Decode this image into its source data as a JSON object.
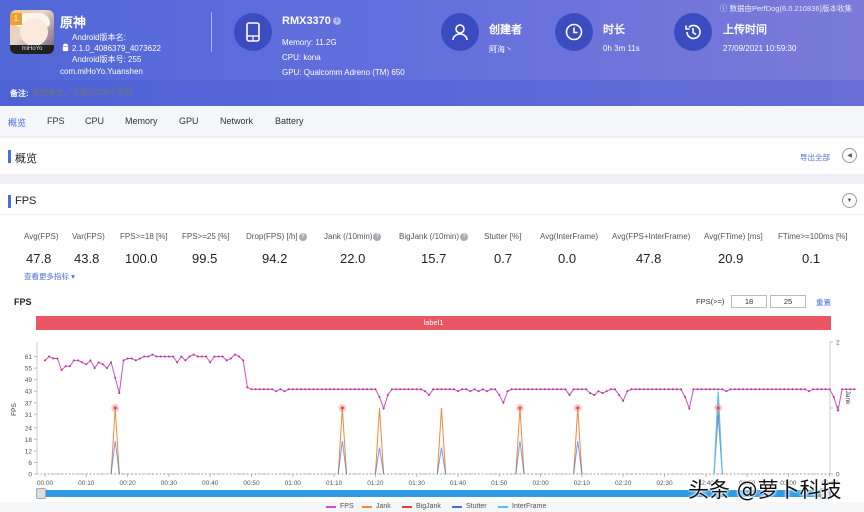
{
  "header": {
    "app": {
      "name": "原神",
      "version_name_label": "Android版本名:",
      "version_name": "2.1.0_4086379_4073622",
      "version_code_label": "Android版本号: 255",
      "package": "com.miHoYo.Yuanshen",
      "icon_badge": "1",
      "icon_tag": "miHoYo"
    },
    "device": {
      "model": "RMX3370",
      "memory": "Memory: 11.2G",
      "cpu": "CPU: kona",
      "gpu": "GPU: Qualcomm Adreno (TM) 650",
      "icon": "phone-icon"
    },
    "creator": {
      "title": "创建者",
      "value": "阿海丶",
      "icon": "user-icon"
    },
    "duration": {
      "title": "时长",
      "value": "0h 3m 11s",
      "icon": "clock-icon"
    },
    "upload_time": {
      "title": "上传时间",
      "value": "27/09/2021 10:59:30",
      "icon": "history-icon"
    },
    "perfdog_note": "ⓘ 数据由PerfDog(6.0.210836)版本收集",
    "remark": {
      "label": "备注:",
      "placeholder": "添加备注，不超过200个字符"
    }
  },
  "tabs": [
    {
      "label": "概览",
      "active": true
    },
    {
      "label": "FPS",
      "active": false
    },
    {
      "label": "CPU",
      "active": false
    },
    {
      "label": "Memory",
      "active": false
    },
    {
      "label": "GPU",
      "active": false
    },
    {
      "label": "Network",
      "active": false
    },
    {
      "label": "Battery",
      "active": false
    }
  ],
  "overview_panel": {
    "title": "概览",
    "export_label": "导出全部"
  },
  "fps_panel": {
    "title": "FPS",
    "metrics": [
      {
        "label": "Avg(FPS)",
        "value": "47.8",
        "help": false
      },
      {
        "label": "Var(FPS)",
        "value": "43.8",
        "help": false
      },
      {
        "label": "FPS>=18 [%]",
        "value": "100.0",
        "help": false
      },
      {
        "label": "FPS>=25 [%]",
        "value": "99.5",
        "help": false
      },
      {
        "label": "Drop(FPS) [/h]",
        "value": "94.2",
        "help": true
      },
      {
        "label": "Jank (/10min)",
        "value": "22.0",
        "help": true
      },
      {
        "label": "BigJank (/10min)",
        "value": "15.7",
        "help": true
      },
      {
        "label": "Stutter [%]",
        "value": "0.7",
        "help": false
      },
      {
        "label": "Avg(InterFrame)",
        "value": "0.0",
        "help": false
      },
      {
        "label": "Avg(FPS+InterFrame)",
        "value": "47.8",
        "help": false
      },
      {
        "label": "Avg(FTime) [ms]",
        "value": "20.9",
        "help": false
      },
      {
        "label": "FTime>=100ms [%]",
        "value": "0.1",
        "help": false
      }
    ],
    "more_link": "查看更多指标 ▾",
    "chart_title": "FPS",
    "threshold_label": "FPS(>=)",
    "threshold_1": "18",
    "threshold_2": "25",
    "reset_label": "重置",
    "label_bar": "label1"
  },
  "chart_data": {
    "type": "line",
    "title": "FPS",
    "xlabel": "",
    "ylabel": "FPS",
    "y2label": "Jank",
    "ylim": [
      0,
      67
    ],
    "y2lim": [
      0,
      2
    ],
    "yticks": [
      0,
      6,
      12,
      18,
      24,
      31,
      37,
      43,
      49,
      55,
      61
    ],
    "y2ticks": [
      0,
      1,
      2
    ],
    "x_ticks": [
      "00:00",
      "00:10",
      "00:20",
      "00:30",
      "00:40",
      "00:50",
      "01:00",
      "01:10",
      "01:20",
      "01:30",
      "01:40",
      "01:50",
      "02:00",
      "02:10",
      "02:20",
      "02:30",
      "02:40",
      "02:50",
      "03:00",
      "03:10"
    ],
    "duration_s": 191,
    "legend": [
      "FPS",
      "Jank",
      "BigJank",
      "Stutter",
      "InterFrame"
    ],
    "colors": {
      "FPS": "#d24fc0",
      "Jank": "#f08a3e",
      "BigJank": "#e0413f",
      "Stutter": "#4a6ee0",
      "InterFrame": "#5bc0eb"
    },
    "series": [
      {
        "name": "FPS",
        "values": [
          59,
          61,
          60,
          60,
          54,
          56,
          56,
          59,
          59,
          58,
          57,
          59,
          55,
          58,
          57,
          55,
          58,
          50,
          42,
          59,
          60,
          60,
          59,
          60,
          61,
          61,
          62,
          61,
          61,
          61,
          61,
          61,
          58,
          61,
          59,
          61,
          62,
          61,
          61,
          61,
          58,
          61,
          61,
          61,
          59,
          60,
          62,
          61,
          59,
          45,
          44,
          44,
          44,
          44,
          44,
          44,
          43,
          44,
          43,
          44,
          44,
          44,
          44,
          44,
          44,
          44,
          44,
          44,
          44,
          44,
          44,
          44,
          44,
          44,
          44,
          44,
          44,
          44,
          44,
          44,
          44,
          40,
          34,
          41,
          44,
          44,
          44,
          44,
          44,
          44,
          44,
          44,
          43,
          41,
          44,
          44,
          44,
          44,
          44,
          44,
          43,
          44,
          44,
          43,
          44,
          43,
          44,
          43,
          44,
          44,
          41,
          37,
          43,
          44,
          44,
          44,
          44,
          44,
          44,
          44,
          44,
          44,
          44,
          44,
          44,
          44,
          44,
          41,
          44,
          44,
          44,
          44,
          42,
          41,
          43,
          42,
          43,
          44,
          44,
          41,
          38,
          43,
          44,
          44,
          44,
          44,
          44,
          44,
          44,
          44,
          44,
          44,
          44,
          44,
          44,
          40,
          34,
          44,
          44,
          44,
          44,
          44,
          44,
          44,
          44,
          43,
          44,
          44,
          44,
          44,
          44,
          44,
          44,
          44,
          44,
          44,
          44,
          44,
          44,
          44,
          44,
          44,
          44,
          44,
          44,
          43,
          44,
          44,
          44,
          44,
          44,
          40,
          33,
          44,
          44,
          44,
          44
        ]
      },
      {
        "name": "Jank",
        "events_s": [
          17,
          72,
          81,
          96,
          115,
          129,
          163
        ],
        "values_at_events": [
          1,
          1,
          1,
          1,
          1,
          1,
          1
        ]
      },
      {
        "name": "BigJank",
        "events_s": [
          17,
          72,
          115,
          129,
          163
        ],
        "values_at_events": [
          1,
          1,
          1,
          1,
          1
        ]
      },
      {
        "name": "Stutter",
        "events_s": [
          17,
          72,
          81,
          96,
          115,
          129,
          163
        ],
        "values_at_events": [
          0.5,
          0.5,
          0.4,
          0.4,
          0.5,
          0.5,
          0.9
        ]
      },
      {
        "name": "InterFrame",
        "values_constant": 0
      }
    ],
    "grid": false,
    "legend_position": "bottom"
  },
  "watermark": "头条 @萝卜科技"
}
